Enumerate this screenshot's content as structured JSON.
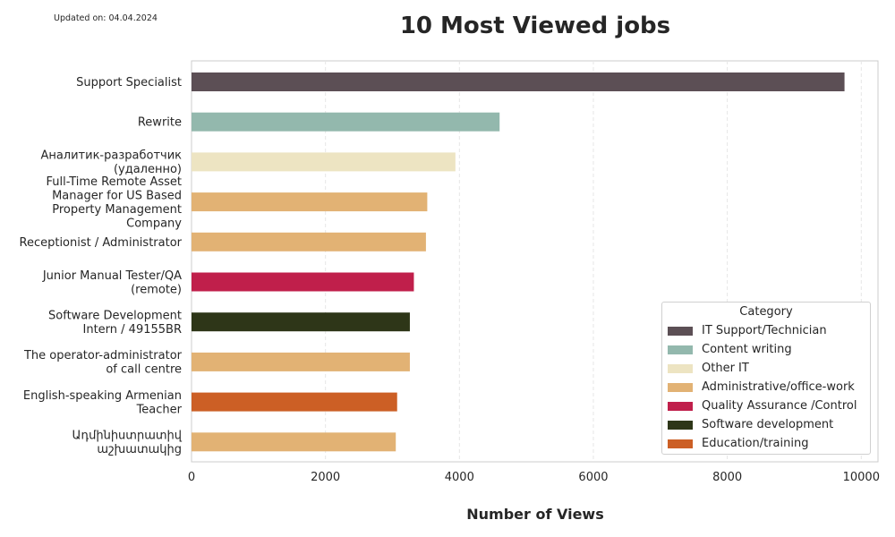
{
  "note": "Updated on: 04.04.2024",
  "chart_data": {
    "type": "bar",
    "orientation": "horizontal",
    "title": "10 Most Viewed jobs",
    "xlabel": "Number of Views",
    "ylabel": "",
    "xlim": [
      0,
      10250
    ],
    "xticks": [
      "0",
      "2000",
      "4000",
      "6000",
      "8000",
      "10000"
    ],
    "xtick_values": [
      0,
      2000,
      4000,
      6000,
      8000,
      10000
    ],
    "grid": "vertical dashed",
    "legend_title": "Category",
    "legend_position": "lower right",
    "legend": [
      {
        "label": "IT Support/Technician",
        "color": "#5c4f55"
      },
      {
        "label": "Content writing",
        "color": "#93b8ad"
      },
      {
        "label": "Other IT",
        "color": "#ede4c2"
      },
      {
        "label": "Administrative/office-work",
        "color": "#e2b274"
      },
      {
        "label": "Quality Assurance /Control",
        "color": "#c01f4b"
      },
      {
        "label": "Software development",
        "color": "#2e3618"
      },
      {
        "label": "Education/training",
        "color": "#cc5f25"
      }
    ],
    "bars": [
      {
        "label": "Support Specialist",
        "lines": [
          "Support Specialist"
        ],
        "value": 9750,
        "category": "IT Support/Technician",
        "color": "#5c4f55"
      },
      {
        "label": "Rewrite",
        "lines": [
          "Rewrite"
        ],
        "value": 4600,
        "category": "Content writing",
        "color": "#93b8ad"
      },
      {
        "label": "Аналитик-разработчик (удаленно)",
        "lines": [
          "Аналитик-разработчик",
          "(удаленно)"
        ],
        "value": 3940,
        "category": "Other IT",
        "color": "#ede4c2"
      },
      {
        "label": "Full-Time Remote Asset Manager for US Based Property Management Company",
        "lines": [
          "Full-Time Remote Asset",
          "Manager for US Based",
          "Property Management",
          "Company"
        ],
        "value": 3520,
        "category": "Administrative/office-work",
        "color": "#e2b274"
      },
      {
        "label": "Receptionist / Administrator",
        "lines": [
          "Receptionist / Administrator"
        ],
        "value": 3500,
        "category": "Administrative/office-work",
        "color": "#e2b274"
      },
      {
        "label": "Junior Manual Tester/QA (remote)",
        "lines": [
          "Junior Manual Tester/QA",
          "(remote)"
        ],
        "value": 3320,
        "category": "Quality Assurance /Control",
        "color": "#c01f4b"
      },
      {
        "label": "Software Development Intern / 49155BR",
        "lines": [
          "Software Development",
          "Intern / 49155BR"
        ],
        "value": 3260,
        "category": "Software development",
        "color": "#2e3618"
      },
      {
        "label": "The operator-administrator of call centre",
        "lines": [
          "The operator-administrator",
          "of call centre"
        ],
        "value": 3260,
        "category": "Administrative/office-work",
        "color": "#e2b274"
      },
      {
        "label": "English-speaking Armenian Teacher",
        "lines": [
          "English-speaking Armenian",
          "Teacher"
        ],
        "value": 3070,
        "category": "Education/training",
        "color": "#cc5f25"
      },
      {
        "label": "Ադմինիստրատիվ աշխատակից",
        "lines": [
          "Ադմինիստրատիվ",
          "աշխատակից"
        ],
        "value": 3050,
        "category": "Administrative/office-work",
        "color": "#e2b274"
      }
    ]
  }
}
